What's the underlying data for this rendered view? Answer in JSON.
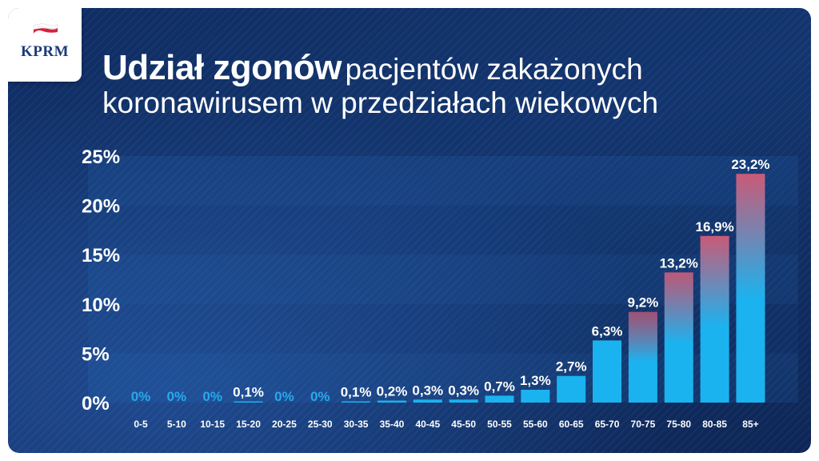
{
  "brand": {
    "logo_text": "KPRM"
  },
  "header": {
    "title_bold": "Udział zgonów",
    "title_rest": "pacjentów zakażonych",
    "title_line2": "koronawirusem w przedziałach wiekowych"
  },
  "colors": {
    "background": "#13356f",
    "bar_blue": "#1ab3f0",
    "bar_red": "#c95a78",
    "zero_label": "#27a9ef",
    "text": "#ffffff"
  },
  "chart_data": {
    "type": "bar",
    "title": "Udział zgonów pacjentów zakażonych koronawirusem w przedziałach wiekowych",
    "xlabel": "",
    "ylabel": "",
    "ylim": [
      0,
      25
    ],
    "yticks": [
      "0%",
      "5%",
      "10%",
      "15%",
      "20%",
      "25%"
    ],
    "ytick_values": [
      0,
      5,
      10,
      15,
      20,
      25
    ],
    "grid": "horizontal bands",
    "categories": [
      "0-5",
      "5-10",
      "10-15",
      "15-20",
      "20-25",
      "25-30",
      "30-35",
      "35-40",
      "40-45",
      "45-50",
      "50-55",
      "55-60",
      "60-65",
      "65-70",
      "70-75",
      "75-80",
      "80-85",
      "85+"
    ],
    "values": [
      0,
      0,
      0,
      0.1,
      0,
      0,
      0.1,
      0.2,
      0.3,
      0.3,
      0.7,
      1.3,
      2.7,
      6.3,
      9.2,
      13.2,
      16.9,
      23.2
    ],
    "labels": [
      "0%",
      "0%",
      "0%",
      "0,1%",
      "0%",
      "0%",
      "0,1%",
      "0,2%",
      "0,3%",
      "0,3%",
      "0,7%",
      "1,3%",
      "2,7%",
      "6,3%",
      "9,2%",
      "13,2%",
      "16,9%",
      "23,2%"
    ]
  }
}
